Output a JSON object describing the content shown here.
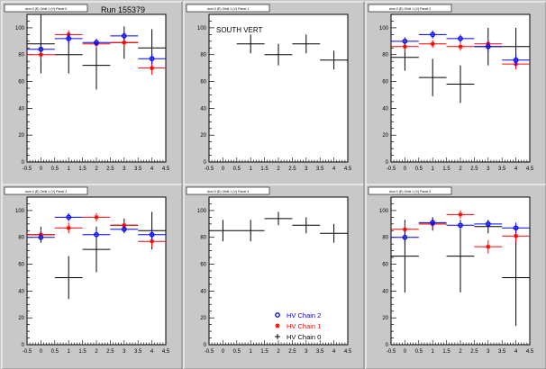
{
  "run_label": "Run 155379",
  "colors": {
    "chain2": "#0000ff",
    "chain1": "#ff0000",
    "chain0": "#000000",
    "frame_bg": "#ffffff",
    "canvas_bg": "#c8c8c8"
  },
  "legend": [
    {
      "label": "HV Chain 2",
      "marker": "circle",
      "color": "#0000ff"
    },
    {
      "label": "HV Chain 1",
      "marker": "star",
      "color": "#ff0000"
    },
    {
      "label": "HV Chain 0",
      "marker": "plus",
      "color": "#000000"
    }
  ],
  "chart_data": [
    {
      "type": "scatter",
      "title": "dom 0 (E) Orbit 1 (V) Panel 0",
      "annotation": "",
      "xlim": [
        -0.5,
        4.5
      ],
      "ylim": [
        0,
        110
      ],
      "xticks": [
        "-0.5",
        "0",
        "0.5",
        "1",
        "1.5",
        "2",
        "2.5",
        "3",
        "3.5",
        "4",
        "4.5"
      ],
      "yticks": [
        "0",
        "20",
        "40",
        "60",
        "80",
        "100"
      ],
      "series": [
        {
          "name": "HV Chain 2",
          "points": [
            {
              "x": 0,
              "y": 84,
              "ey": 3
            },
            {
              "x": 1,
              "y": 92,
              "ey": 4
            },
            {
              "x": 2,
              "y": 89,
              "ey": 3
            },
            {
              "x": 3,
              "y": 94,
              "ey": 3
            },
            {
              "x": 4,
              "y": 77,
              "ey": 4
            }
          ]
        },
        {
          "name": "HV Chain 1",
          "points": [
            {
              "x": 0,
              "y": 80,
              "ey": 4
            },
            {
              "x": 1,
              "y": 95,
              "ey": 3
            },
            {
              "x": 2,
              "y": 88,
              "ey": 3
            },
            {
              "x": 3,
              "y": 89,
              "ey": 4
            },
            {
              "x": 4,
              "y": 70,
              "ey": 5
            }
          ]
        },
        {
          "name": "HV Chain 0",
          "points": [
            {
              "x": 0,
              "y": 88,
              "ey": 22
            },
            {
              "x": 1,
              "y": 80,
              "ey": 14
            },
            {
              "x": 2,
              "y": 72,
              "ey": 18
            },
            {
              "x": 3,
              "y": 89,
              "ey": 12
            },
            {
              "x": 4,
              "y": 85,
              "ey": 14
            }
          ]
        }
      ]
    },
    {
      "type": "scatter",
      "title": "dom 0 (E) Orbit 1 (V) Panel 1",
      "annotation": "SOUTH VERT",
      "xlim": [
        -0.5,
        4.5
      ],
      "ylim": [
        0,
        110
      ],
      "xticks": [
        "-0.5",
        "0",
        "0.5",
        "1",
        "1.5",
        "2",
        "2.5",
        "3",
        "3.5",
        "4",
        "4.5"
      ],
      "yticks": [
        "0",
        "20",
        "40",
        "60",
        "80",
        "100"
      ],
      "series": [
        {
          "name": "HV Chain 0",
          "points": [
            {
              "x": 1,
              "y": 88,
              "ey": 7
            },
            {
              "x": 2,
              "y": 80,
              "ey": 8
            },
            {
              "x": 3,
              "y": 88,
              "ey": 7
            },
            {
              "x": 4,
              "y": 76,
              "ey": 7
            }
          ]
        }
      ]
    },
    {
      "type": "scatter",
      "title": "dom 0 (E) Orbit 1 (V) Panel 2",
      "annotation": "",
      "xlim": [
        -0.5,
        4.5
      ],
      "ylim": [
        0,
        110
      ],
      "xticks": [
        "-0.5",
        "0",
        "0.5",
        "1",
        "1.5",
        "2",
        "2.5",
        "3",
        "3.5",
        "4",
        "4.5"
      ],
      "yticks": [
        "0",
        "20",
        "40",
        "60",
        "80",
        "100"
      ],
      "series": [
        {
          "name": "HV Chain 2",
          "points": [
            {
              "x": 0,
              "y": 90,
              "ey": 3
            },
            {
              "x": 1,
              "y": 95,
              "ey": 3
            },
            {
              "x": 2,
              "y": 92,
              "ey": 3
            },
            {
              "x": 3,
              "y": 86,
              "ey": 4
            },
            {
              "x": 4,
              "y": 76,
              "ey": 4
            }
          ]
        },
        {
          "name": "HV Chain 1",
          "points": [
            {
              "x": 0,
              "y": 86,
              "ey": 4
            },
            {
              "x": 1,
              "y": 88,
              "ey": 3
            },
            {
              "x": 2,
              "y": 86,
              "ey": 3
            },
            {
              "x": 3,
              "y": 88,
              "ey": 3
            },
            {
              "x": 4,
              "y": 73,
              "ey": 4
            }
          ]
        },
        {
          "name": "HV Chain 0",
          "points": [
            {
              "x": 0,
              "y": 78,
              "ey": 10
            },
            {
              "x": 1,
              "y": 63,
              "ey": 14
            },
            {
              "x": 2,
              "y": 58,
              "ey": 14
            },
            {
              "x": 3,
              "y": 86,
              "ey": 14
            },
            {
              "x": 4,
              "y": 86,
              "ey": 14
            }
          ]
        }
      ]
    },
    {
      "type": "scatter",
      "title": "dom 0 (E) Orbit 1 (V) Panel 3",
      "annotation": "",
      "xlim": [
        -0.5,
        4.5
      ],
      "ylim": [
        0,
        110
      ],
      "xticks": [
        "-0.5",
        "0",
        "0.5",
        "1",
        "1.5",
        "2",
        "2.5",
        "3",
        "3.5",
        "4",
        "4.5"
      ],
      "yticks": [
        "0",
        "20",
        "40",
        "60",
        "80",
        "100"
      ],
      "series": [
        {
          "name": "HV Chain 2",
          "points": [
            {
              "x": 0,
              "y": 80,
              "ey": 4
            },
            {
              "x": 1,
              "y": 95,
              "ey": 3
            },
            {
              "x": 2,
              "y": 82,
              "ey": 3
            },
            {
              "x": 3,
              "y": 86,
              "ey": 3
            },
            {
              "x": 4,
              "y": 82,
              "ey": 4
            }
          ]
        },
        {
          "name": "HV Chain 1",
          "points": [
            {
              "x": 0,
              "y": 82,
              "ey": 4
            },
            {
              "x": 1,
              "y": 87,
              "ey": 4
            },
            {
              "x": 2,
              "y": 95,
              "ey": 3
            },
            {
              "x": 3,
              "y": 89,
              "ey": 3
            },
            {
              "x": 4,
              "y": 77,
              "ey": 4
            }
          ]
        },
        {
          "name": "HV Chain 0",
          "points": [
            {
              "x": 0,
              "y": 82,
              "ey": 6
            },
            {
              "x": 1,
              "y": 50,
              "ey": 16
            },
            {
              "x": 2,
              "y": 71,
              "ey": 17
            },
            {
              "x": 3,
              "y": 89,
              "ey": 5
            },
            {
              "x": 4,
              "y": 85,
              "ey": 14
            }
          ]
        }
      ]
    },
    {
      "type": "scatter",
      "title": "dom 0 (E) Orbit 1 (V) Panel 4",
      "annotation": "",
      "xlim": [
        -0.5,
        4.5
      ],
      "ylim": [
        0,
        110
      ],
      "xticks": [
        "-0.5",
        "0",
        "0.5",
        "1",
        "1.5",
        "2",
        "2.5",
        "3",
        "3.5",
        "4",
        "4.5"
      ],
      "yticks": [
        "0",
        "20",
        "40",
        "60",
        "80",
        "100"
      ],
      "series": [
        {
          "name": "HV Chain 0",
          "points": [
            {
              "x": 0,
              "y": 85,
              "ey": 8
            },
            {
              "x": 1,
              "y": 85,
              "ey": 8
            },
            {
              "x": 2,
              "y": 94,
              "ey": 5
            },
            {
              "x": 3,
              "y": 89,
              "ey": 6
            },
            {
              "x": 4,
              "y": 83,
              "ey": 7
            }
          ]
        }
      ]
    },
    {
      "type": "scatter",
      "title": "dom 0 (E) Orbit 1 (V) Panel 5",
      "annotation": "",
      "xlim": [
        -0.5,
        4.5
      ],
      "ylim": [
        0,
        110
      ],
      "xticks": [
        "-0.5",
        "0",
        "0.5",
        "1",
        "1.5",
        "2",
        "2.5",
        "3",
        "3.5",
        "4",
        "4.5"
      ],
      "yticks": [
        "0",
        "20",
        "40",
        "60",
        "80",
        "100"
      ],
      "series": [
        {
          "name": "HV Chain 2",
          "points": [
            {
              "x": 0,
              "y": 80,
              "ey": 5
            },
            {
              "x": 1,
              "y": 91,
              "ey": 3
            },
            {
              "x": 2,
              "y": 89,
              "ey": 3
            },
            {
              "x": 3,
              "y": 90,
              "ey": 3
            },
            {
              "x": 4,
              "y": 87,
              "ey": 4
            }
          ]
        },
        {
          "name": "HV Chain 1",
          "points": [
            {
              "x": 0,
              "y": 86,
              "ey": 5
            },
            {
              "x": 1,
              "y": 90,
              "ey": 3
            },
            {
              "x": 2,
              "y": 97,
              "ey": 3
            },
            {
              "x": 3,
              "y": 73,
              "ey": 5
            },
            {
              "x": 4,
              "y": 81,
              "ey": 5
            }
          ]
        },
        {
          "name": "HV Chain 0",
          "points": [
            {
              "x": 0,
              "y": 66,
              "ey": 27
            },
            {
              "x": 1,
              "y": 90,
              "ey": 5
            },
            {
              "x": 2,
              "y": 66,
              "ey": 27
            },
            {
              "x": 3,
              "y": 88,
              "ey": 5
            },
            {
              "x": 4,
              "y": 50,
              "ey": 36
            }
          ]
        }
      ]
    }
  ]
}
